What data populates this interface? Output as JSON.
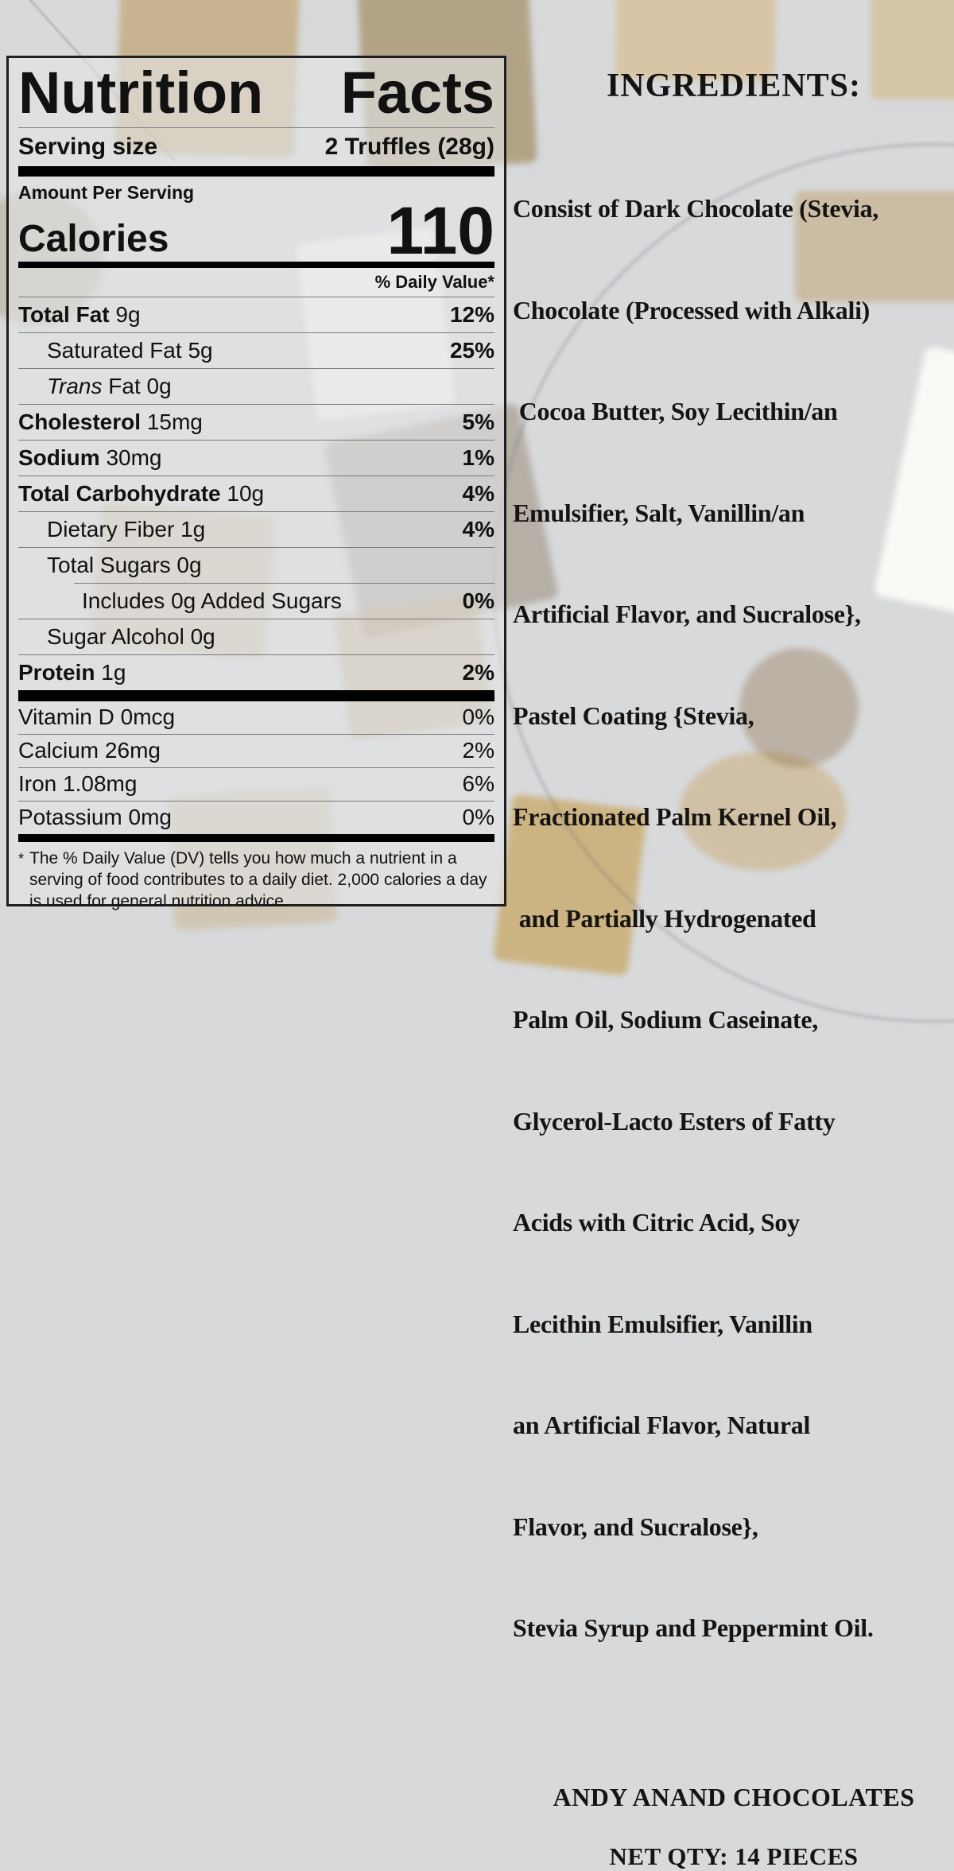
{
  "nutrition_label": {
    "title_words": [
      "Nutrition",
      "Facts"
    ],
    "serving_size_label": "Serving size",
    "serving_size_value": "2 Truffles (28g)",
    "amount_per_serving": "Amount Per Serving",
    "calories_label": "Calories",
    "calories_value": "110",
    "daily_value_header": "% Daily Value*",
    "rows": [
      {
        "name": "Total Fat",
        "amount": "9g",
        "dv": "12%"
      },
      {
        "name": "Saturated Fat",
        "amount": "5g",
        "dv": "25%"
      },
      {
        "name": "Trans",
        "amount": "Fat 0g",
        "dv": ""
      },
      {
        "name": "Cholesterol",
        "amount": "15mg",
        "dv": "5%"
      },
      {
        "name": "Sodium",
        "amount": "30mg",
        "dv": "1%"
      },
      {
        "name": "Total Carbohydrate",
        "amount": "10g",
        "dv": "4%"
      },
      {
        "name": "Dietary Fiber",
        "amount": "1g",
        "dv": "4%"
      },
      {
        "name": "Total Sugars",
        "amount": "0g",
        "dv": ""
      },
      {
        "name": "Includes 0g Added Sugars",
        "amount": "",
        "dv": "0%"
      },
      {
        "name": "Sugar Alcohol",
        "amount": "0g",
        "dv": ""
      },
      {
        "name": "Protein",
        "amount": "1g",
        "dv": "2%"
      }
    ],
    "vitamins": [
      {
        "name": "Vitamin D",
        "amount": "0mcg",
        "dv": "0%"
      },
      {
        "name": "Calcium",
        "amount": "26mg",
        "dv": "2%"
      },
      {
        "name": "Iron",
        "amount": "1.08mg",
        "dv": "6%"
      },
      {
        "name": "Potassium",
        "amount": "0mg",
        "dv": "0%"
      }
    ],
    "footnote_marker": "*",
    "footnote_text": "The % Daily Value (DV) tells you how much a nutrient in a serving of food contributes to a daily diet. 2,000 calories a day is used for general nutrition advice."
  },
  "ingredients": {
    "heading": "INGREDIENTS:",
    "lines": [
      "Consist of Dark Chocolate (Stevia,",
      "Chocolate (Processed with Alkali)",
      " Cocoa Butter, Soy Lecithin/an",
      "Emulsifier, Salt, Vanillin/an",
      "Artificial Flavor, and Sucralose},",
      "Pastel Coating {Stevia,",
      "Fractionated Palm Kernel Oil,",
      " and Partially Hydrogenated",
      "Palm Oil, Sodium Caseinate,",
      "Glycerol-Lacto Esters of Fatty",
      "Acids with Citric Acid, Soy",
      "Lecithin Emulsifier, Vanillin",
      "an Artificial Flavor, Natural",
      "Flavor, and Sucralose},",
      "Stevia Syrup and Peppermint Oil."
    ]
  },
  "brand": {
    "name": "ANDY ANAND CHOCOLATES",
    "net_qty": "NET QTY: 14 PIECES"
  },
  "colors": {
    "page_background": "#d7d9db",
    "label_border": "#1f1f1f",
    "label_bars": "#000000",
    "text": "#111111",
    "gold_accent": "#c7a053"
  }
}
